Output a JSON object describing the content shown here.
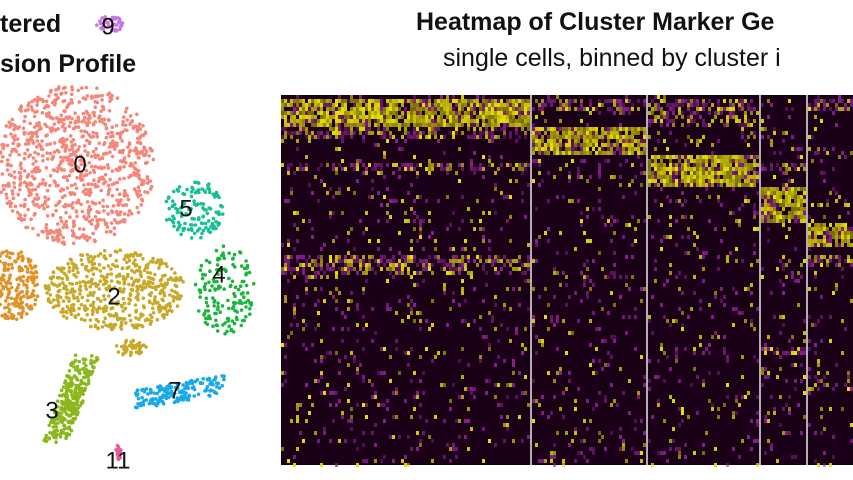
{
  "left_panel": {
    "title_line1": "tered",
    "title_line2": "sion Profile"
  },
  "right_panel": {
    "title": "Heatmap of Cluster Marker Ge",
    "subtitle": "single cells, binned by cluster i"
  },
  "clusters": [
    {
      "id": "0",
      "label": "0",
      "color": "#f4877a"
    },
    {
      "id": "2",
      "label": "2",
      "color": "#c8a92a"
    },
    {
      "id": "3",
      "label": "3",
      "color": "#8ab81d"
    },
    {
      "id": "4",
      "label": "4",
      "color": "#1cb63f"
    },
    {
      "id": "5",
      "label": "5",
      "color": "#19bf96"
    },
    {
      "id": "7",
      "label": "7",
      "color": "#1aa9e8"
    },
    {
      "id": "9",
      "label": "9",
      "color": "#c479e0"
    },
    {
      "id": "11",
      "label": "11",
      "color": "#e45a9a"
    },
    {
      "id": "1",
      "label": "",
      "color": "#e0932a"
    }
  ],
  "heatmap_colors": {
    "low": "#190016",
    "mid": "#8c1e92",
    "high": "#e8e200"
  }
}
